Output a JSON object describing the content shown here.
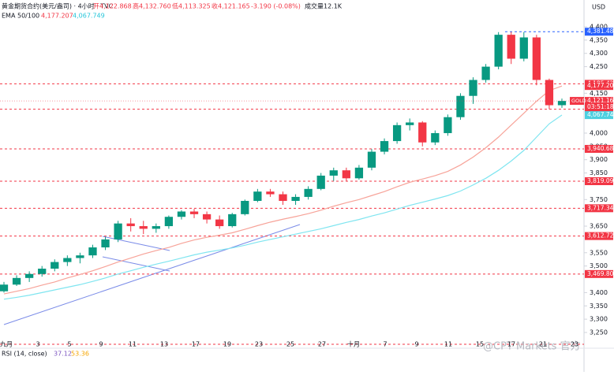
{
  "header": {
    "symbol": "黄金期货合约(美元/盎司) · 4小时 · TVC",
    "open": "开4,122.868",
    "high": "高4,132.760",
    "low": "低4,113.325",
    "close": "收4,121.165",
    "change": "-3.190 (-0.08%)",
    "volume": "成交量12.1K",
    "ema_label": "EMA 50/100",
    "ema50": "4,177.207",
    "ema100": "4,067.749",
    "currency": "USD"
  },
  "rsi": {
    "label": "RSI (14, close)",
    "value1": "37.12",
    "value2": "53.36"
  },
  "watermark": "@CPT Markets 官方",
  "chart_data": {
    "type": "candlestick",
    "time_labels": [
      "九月",
      "3",
      "5",
      "9",
      "11",
      "13",
      "17",
      "19",
      "23",
      "25",
      "27",
      "十月",
      "7",
      "9",
      "11",
      "15",
      "17",
      "21",
      "23"
    ],
    "open": [
      3405,
      3430,
      3455,
      3470,
      3490,
      3515,
      3530,
      3540,
      3570,
      3600,
      3660,
      3650,
      3640,
      3650,
      3685,
      3705,
      3695,
      3675,
      3650,
      3695,
      3745,
      3780,
      3770,
      3745,
      3760,
      3790,
      3840,
      3860,
      3830,
      3870,
      3930,
      3970,
      4030,
      4040,
      3965,
      4000,
      4060,
      4140,
      4200,
      4250,
      4370,
      4280,
      4360,
      4200,
      4105
    ],
    "high": [
      3440,
      3465,
      3480,
      3500,
      3525,
      3540,
      3550,
      3580,
      3610,
      3670,
      3680,
      3670,
      3660,
      3690,
      3710,
      3715,
      3705,
      3690,
      3700,
      3750,
      3790,
      3790,
      3780,
      3770,
      3800,
      3850,
      3870,
      3870,
      3880,
      3940,
      3980,
      4040,
      4055,
      4045,
      4010,
      4070,
      4150,
      4210,
      4260,
      4380,
      4381,
      4380,
      4370,
      4205,
      4130
    ],
    "low": [
      3400,
      3425,
      3440,
      3460,
      3480,
      3500,
      3510,
      3530,
      3560,
      3590,
      3630,
      3620,
      3625,
      3640,
      3675,
      3680,
      3660,
      3640,
      3645,
      3690,
      3740,
      3760,
      3730,
      3730,
      3750,
      3785,
      3820,
      3820,
      3825,
      3860,
      3920,
      3960,
      4010,
      3950,
      3955,
      3990,
      4050,
      4110,
      4190,
      4240,
      4260,
      4270,
      4180,
      4090,
      4095
    ],
    "close": [
      3430,
      3455,
      3470,
      3490,
      3515,
      3530,
      3540,
      3570,
      3600,
      3660,
      3650,
      3640,
      3650,
      3685,
      3705,
      3695,
      3675,
      3650,
      3695,
      3745,
      3780,
      3770,
      3745,
      3760,
      3790,
      3840,
      3860,
      3830,
      3870,
      3930,
      3970,
      4030,
      4040,
      3965,
      4000,
      4060,
      4140,
      4200,
      4250,
      4370,
      4280,
      4360,
      4200,
      4105,
      4121
    ],
    "up_color": "#089981",
    "down_color": "#f23645",
    "lines": [
      {
        "color": "#f7a399",
        "values": [
          3395,
          3405,
          3415,
          3428,
          3440,
          3455,
          3468,
          3482,
          3498,
          3515,
          3530,
          3545,
          3558,
          3570,
          3585,
          3598,
          3608,
          3616,
          3625,
          3638,
          3652,
          3665,
          3676,
          3686,
          3697,
          3710,
          3725,
          3738,
          3750,
          3765,
          3780,
          3798,
          3815,
          3827,
          3840,
          3856,
          3880,
          3910,
          3945,
          3985,
          4030,
          4075,
          4120,
          4160,
          4177
        ]
      },
      {
        "color": "#7fe5f0",
        "values": [
          3375,
          3382,
          3390,
          3400,
          3410,
          3420,
          3430,
          3442,
          3455,
          3470,
          3482,
          3495,
          3507,
          3518,
          3530,
          3542,
          3552,
          3560,
          3568,
          3578,
          3590,
          3600,
          3610,
          3620,
          3630,
          3640,
          3652,
          3664,
          3675,
          3688,
          3700,
          3714,
          3728,
          3740,
          3752,
          3765,
          3782,
          3805,
          3830,
          3860,
          3895,
          3935,
          3985,
          4035,
          4068
        ]
      }
    ],
    "ylim": [
      3250,
      4400
    ],
    "yticks": [
      {
        "value": 4400,
        "label": "4,400"
      },
      {
        "value": 4350,
        "label": "4,350"
      },
      {
        "value": 4300,
        "label": "4,300"
      },
      {
        "value": 4250,
        "label": "4,250"
      },
      {
        "value": 4150,
        "label": "4,150"
      },
      {
        "value": 4000,
        "label": "4,000"
      },
      {
        "value": 3950,
        "label": "3,950"
      },
      {
        "value": 3900,
        "label": "3,900"
      },
      {
        "value": 3850,
        "label": "3,850"
      },
      {
        "value": 3750,
        "label": "3,750"
      },
      {
        "value": 3650,
        "label": "3,650"
      },
      {
        "value": 3550,
        "label": "3,550"
      },
      {
        "value": 3500,
        "label": "3,500"
      },
      {
        "value": 3400,
        "label": "3,400"
      },
      {
        "value": 3350,
        "label": "3,350"
      },
      {
        "value": 3300,
        "label": "3,300"
      },
      {
        "value": 3250,
        "label": "3,250"
      }
    ],
    "levels": [
      {
        "value": 4381.484,
        "label": "4,381.484",
        "color": "#2962ff"
      },
      {
        "value": 4185.425,
        "label": "4,185.425",
        "color": "#f23645"
      },
      {
        "value": 4089.805,
        "label": "4,089.805",
        "color": "#f23645"
      },
      {
        "value": 3940.685,
        "label": "3,940.685",
        "color": "#f23645"
      },
      {
        "value": 3819.095,
        "label": "3,819.095",
        "color": "#f23645"
      },
      {
        "value": 3717.348,
        "label": "3,717.348",
        "color": "#f23645"
      },
      {
        "value": 3612.72,
        "label": "3,612.720",
        "color": "#f23645"
      },
      {
        "value": 3469.805,
        "label": "3,469.805",
        "color": "#f23645"
      }
    ],
    "tags": [
      {
        "value": 4177.207,
        "label": "4,177.207",
        "color": "#f23645"
      },
      {
        "value": 4121.165,
        "label": "4,121.165",
        "name": "GOLD",
        "timer": "03:51:18",
        "color": "#f23645"
      },
      {
        "value": 4067.749,
        "label": "4,067.749",
        "color": "#4dd0e1"
      }
    ]
  }
}
